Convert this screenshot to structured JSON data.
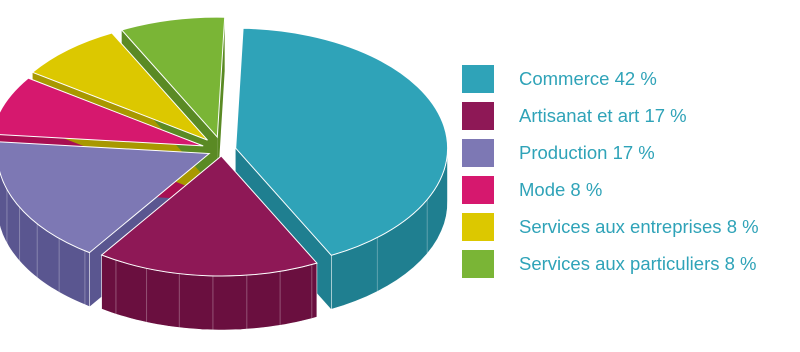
{
  "chart_data": {
    "type": "pie",
    "title": "",
    "style": "3d-exploded",
    "slices": [
      {
        "category": "Commerce",
        "value": 42,
        "label": "Commerce 42 %",
        "color": "#2fa3b8",
        "side_color": "#1f7f90"
      },
      {
        "category": "Artisanat et art",
        "value": 17,
        "label": "Artisanat et art 17 %",
        "color": "#8e1856",
        "side_color": "#6a0f3f"
      },
      {
        "category": "Production",
        "value": 17,
        "label": "Production 17 %",
        "color": "#7d78b4",
        "side_color": "#5a5690"
      },
      {
        "category": "Mode",
        "value": 8,
        "label": "Mode 8 %",
        "color": "#d6186e",
        "side_color": "#a80f52"
      },
      {
        "category": "Services aux entreprises",
        "value": 8,
        "label": "Services aux entreprises 8 %",
        "color": "#dcc800",
        "side_color": "#a89800"
      },
      {
        "category": "Services aux particuliers",
        "value": 8,
        "label": "Services aux particuliers 8 %",
        "color": "#7ab536",
        "side_color": "#5a8a24"
      }
    ],
    "legend_position": "right"
  }
}
